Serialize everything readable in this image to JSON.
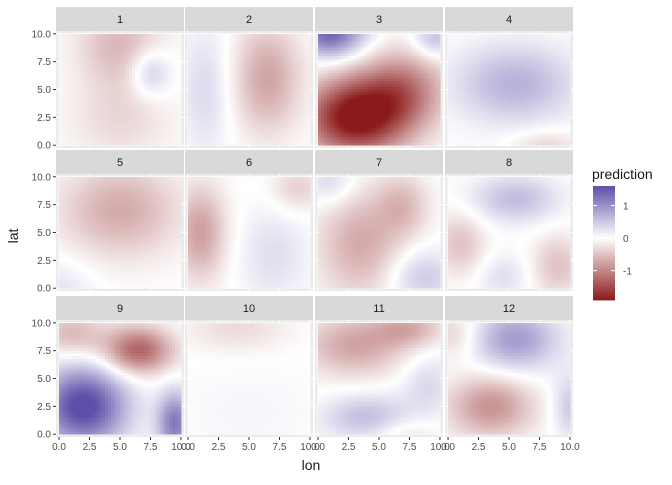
{
  "chart_data": {
    "type": "heatmap",
    "facet_variable": "panel",
    "panels": [
      {
        "label": "1",
        "blobs": [
          {
            "x": 5,
            "y": 9,
            "sx": 2.5,
            "sy": 3,
            "a": -0.6
          },
          {
            "x": 7.5,
            "y": 6.5,
            "sx": 1.2,
            "sy": 1.5,
            "a": 0.6
          },
          {
            "x": 5,
            "y": 2,
            "sx": 3,
            "sy": 2.5,
            "a": -0.3
          }
        ]
      },
      {
        "label": "2",
        "blobs": [
          {
            "x": 6.5,
            "y": 6,
            "sx": 2,
            "sy": 3.5,
            "a": -0.75
          },
          {
            "x": 1.5,
            "y": 5,
            "sx": 1.5,
            "sy": 4,
            "a": 0.35
          }
        ]
      },
      {
        "label": "3",
        "blobs": [
          {
            "x": 3,
            "y": 2.5,
            "sx": 3,
            "sy": 2.5,
            "a": -2.0
          },
          {
            "x": 7,
            "y": 5,
            "sx": 2.5,
            "sy": 2.5,
            "a": -1.0
          },
          {
            "x": 1,
            "y": 10,
            "sx": 2,
            "sy": 1.5,
            "a": 1.4
          },
          {
            "x": 9.5,
            "y": 9.5,
            "sx": 1.2,
            "sy": 1.2,
            "a": 0.6
          }
        ]
      },
      {
        "label": "4",
        "blobs": [
          {
            "x": 5.5,
            "y": 5.5,
            "sx": 3.5,
            "sy": 2.5,
            "a": 0.7
          },
          {
            "x": 8,
            "y": 0,
            "sx": 2,
            "sy": 1,
            "a": -0.35
          }
        ]
      },
      {
        "label": "5",
        "blobs": [
          {
            "x": 5,
            "y": 7,
            "sx": 3.5,
            "sy": 3,
            "a": -0.7
          },
          {
            "x": 0,
            "y": 0,
            "sx": 2,
            "sy": 2,
            "a": 0.25
          }
        ]
      },
      {
        "label": "6",
        "blobs": [
          {
            "x": 1,
            "y": 5,
            "sx": 1.5,
            "sy": 3,
            "a": -0.8
          },
          {
            "x": 9,
            "y": 9,
            "sx": 1.5,
            "sy": 1.5,
            "a": -0.4
          },
          {
            "x": 7,
            "y": 3,
            "sx": 2,
            "sy": 3,
            "a": 0.3
          }
        ]
      },
      {
        "label": "7",
        "blobs": [
          {
            "x": 3.5,
            "y": 4,
            "sx": 2.5,
            "sy": 3.5,
            "a": -0.7
          },
          {
            "x": 7,
            "y": 7.5,
            "sx": 1.5,
            "sy": 2,
            "a": -0.5
          },
          {
            "x": 8.5,
            "y": 1,
            "sx": 2,
            "sy": 1.8,
            "a": 0.5
          },
          {
            "x": 1,
            "y": 9.5,
            "sx": 1.5,
            "sy": 1.5,
            "a": 0.4
          }
        ]
      },
      {
        "label": "8",
        "blobs": [
          {
            "x": 5.5,
            "y": 8,
            "sx": 2.5,
            "sy": 1.5,
            "a": 0.6
          },
          {
            "x": 1,
            "y": 4,
            "sx": 1.5,
            "sy": 2,
            "a": -0.5
          },
          {
            "x": 9,
            "y": 2,
            "sx": 1.5,
            "sy": 2,
            "a": -0.5
          },
          {
            "x": 4.5,
            "y": 1,
            "sx": 1.5,
            "sy": 1.5,
            "a": 0.3
          }
        ]
      },
      {
        "label": "9",
        "blobs": [
          {
            "x": 2,
            "y": 2.5,
            "sx": 2.5,
            "sy": 2.5,
            "a": 1.7
          },
          {
            "x": 6.5,
            "y": 7.5,
            "sx": 2,
            "sy": 1.5,
            "a": -1.3
          },
          {
            "x": 9.5,
            "y": 1,
            "sx": 1,
            "sy": 2,
            "a": 1.2
          },
          {
            "x": 1,
            "y": 9,
            "sx": 2,
            "sy": 1.5,
            "a": -0.6
          }
        ]
      },
      {
        "label": "10",
        "blobs": [
          {
            "x": 4,
            "y": 9.5,
            "sx": 3,
            "sy": 1.5,
            "a": -0.3
          },
          {
            "x": 5,
            "y": 2,
            "sx": 4,
            "sy": 3,
            "a": 0.08
          }
        ]
      },
      {
        "label": "11",
        "blobs": [
          {
            "x": 3,
            "y": 8,
            "sx": 3,
            "sy": 2,
            "a": -0.75
          },
          {
            "x": 7.5,
            "y": 9.5,
            "sx": 2,
            "sy": 1.2,
            "a": -0.6
          },
          {
            "x": 4,
            "y": 1.5,
            "sx": 2.5,
            "sy": 1.5,
            "a": 0.6
          },
          {
            "x": 9,
            "y": 4.5,
            "sx": 1.5,
            "sy": 2,
            "a": 0.35
          },
          {
            "x": 7,
            "y": 0,
            "sx": 2,
            "sy": 1,
            "a": -0.3
          }
        ]
      },
      {
        "label": "12",
        "blobs": [
          {
            "x": 5.5,
            "y": 8.5,
            "sx": 2.5,
            "sy": 2,
            "a": 0.9
          },
          {
            "x": 3.5,
            "y": 2.5,
            "sx": 2.5,
            "sy": 2,
            "a": -0.9
          },
          {
            "x": 0.5,
            "y": 9,
            "sx": 1.5,
            "sy": 1.5,
            "a": -0.4
          },
          {
            "x": 10,
            "y": 2.5,
            "sx": 1,
            "sy": 2,
            "a": 0.5
          }
        ]
      }
    ],
    "x_ticks": [
      "0.0",
      "2.5",
      "5.0",
      "7.5",
      "10.0"
    ],
    "y_ticks": [
      "0.0",
      "2.5",
      "5.0",
      "7.5",
      "10.0"
    ],
    "x_tick_values": [
      0,
      2.5,
      5,
      7.5,
      10
    ],
    "y_tick_values": [
      0,
      2.5,
      5,
      7.5,
      10
    ],
    "xlim": [
      -0.25,
      10.25
    ],
    "ylim": [
      -0.25,
      10.25
    ],
    "xlabel": "lon",
    "ylabel": "lat",
    "legend": {
      "title": "prediction",
      "ticks": [
        "1",
        "0",
        "-1"
      ],
      "tick_values": [
        1,
        0,
        -1
      ],
      "range": [
        -1.9,
        1.6
      ]
    },
    "colors": {
      "low": "#8b1a1a",
      "mid": "#ffffff",
      "high": "#5b4fa8",
      "panel_background": "#ebebeb",
      "strip_background": "#d9d9d9"
    },
    "grid": true,
    "legend_position": "right"
  }
}
